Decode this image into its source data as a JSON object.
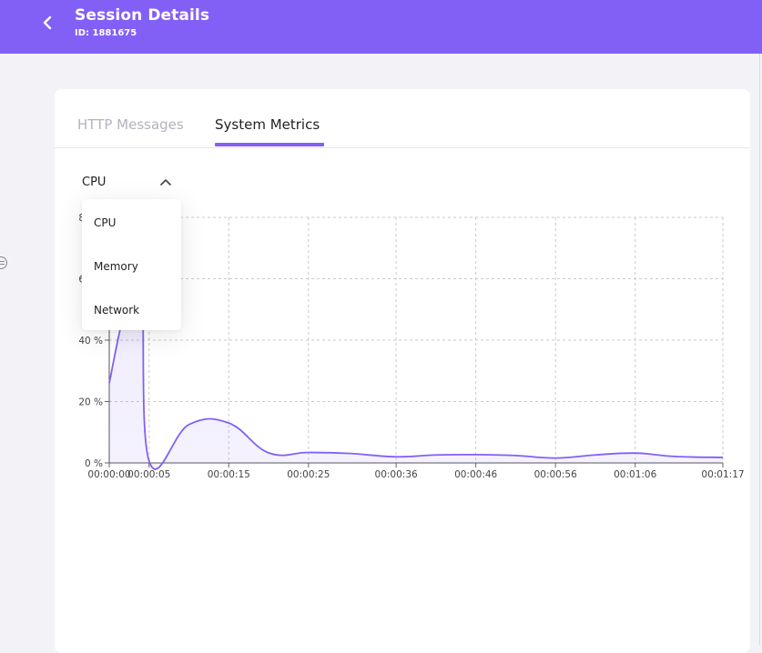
{
  "header": {
    "title": "Session Details",
    "subtitle": "ID: 1881675",
    "back_icon": "chevron-left-icon",
    "background": "#8360f5"
  },
  "tabs": [
    {
      "label": "HTTP Messages",
      "active": false
    },
    {
      "label": "System Metrics",
      "active": true
    }
  ],
  "metric_select": {
    "value": "CPU",
    "expanded": true,
    "options": [
      "CPU",
      "Memory",
      "Network"
    ]
  },
  "accent_color": "#8360f5",
  "chart_data": {
    "type": "area",
    "title": "",
    "xlabel": "",
    "ylabel": "",
    "x_ticks": [
      "00:00:00",
      "00:00:05",
      "00:00:15",
      "00:00:25",
      "00:00:36",
      "00:00:46",
      "00:00:56",
      "00:01:06",
      "00:01:17"
    ],
    "y_ticks": [
      "0 %",
      "20 %",
      "40 %",
      "60 %",
      "80 %"
    ],
    "ylim": [
      0,
      80
    ],
    "grid": true,
    "series": [
      {
        "values": [
          {
            "x": "00:00:00",
            "y": 26
          },
          {
            "x": "00:00:02",
            "y": 50
          },
          {
            "x": "00:00:04",
            "y": 60
          },
          {
            "x": "00:00:05",
            "y": 0.6
          },
          {
            "x": "00:00:10",
            "y": 12.5
          },
          {
            "x": "00:00:15",
            "y": 13
          },
          {
            "x": "00:00:20",
            "y": 3.3
          },
          {
            "x": "00:00:25",
            "y": 3.4
          },
          {
            "x": "00:00:30",
            "y": 3.1
          },
          {
            "x": "00:00:36",
            "y": 2.0
          },
          {
            "x": "00:00:41",
            "y": 2.6
          },
          {
            "x": "00:00:46",
            "y": 2.7
          },
          {
            "x": "00:00:51",
            "y": 2.4
          },
          {
            "x": "00:00:56",
            "y": 1.6
          },
          {
            "x": "00:01:01",
            "y": 2.6
          },
          {
            "x": "00:01:06",
            "y": 3.2
          },
          {
            "x": "00:01:11",
            "y": 2.1
          },
          {
            "x": "00:01:17",
            "y": 1.8
          }
        ]
      }
    ]
  }
}
